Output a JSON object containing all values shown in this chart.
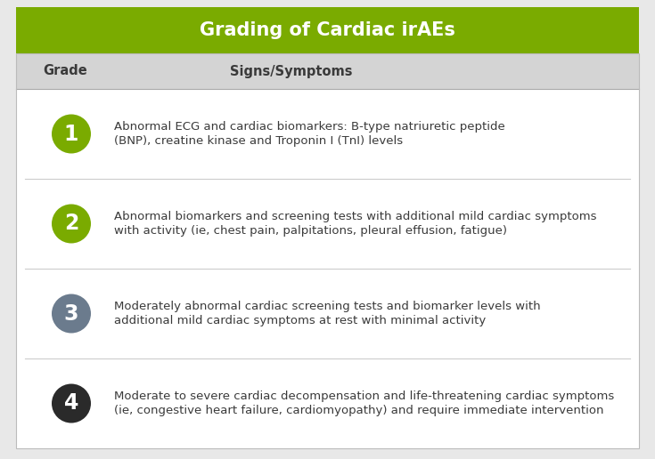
{
  "title": "Grading of Cardiac irAEs",
  "title_bg_color": "#7aab00",
  "title_text_color": "#ffffff",
  "outer_bg_color": "#e8e8e8",
  "inner_bg_color": "#ffffff",
  "header_bg_color": "#d4d4d4",
  "header_grade_text": "Grade",
  "header_symptoms_text": "Signs/Symptoms",
  "grades": [
    {
      "number": "1",
      "circle_color": "#7aab00",
      "text_line1": "Abnormal ECG and cardiac biomarkers: B-type natriuretic peptide",
      "text_line2": "(BNP), creatine kinase and Troponin I (TnI) levels"
    },
    {
      "number": "2",
      "circle_color": "#7aab00",
      "text_line1": "Abnormal biomarkers and screening tests with additional mild cardiac symptoms",
      "text_line2": "with activity (ie, chest pain, palpitations, pleural effusion, fatigue)"
    },
    {
      "number": "3",
      "circle_color": "#6b7b8d",
      "text_line1": "Moderately abnormal cardiac screening tests and biomarker levels with",
      "text_line2": "additional mild cardiac symptoms at rest with minimal activity"
    },
    {
      "number": "4",
      "circle_color": "#2a2a2a",
      "text_line1": "Moderate to severe cardiac decompensation and life-threatening cardiac symptoms",
      "text_line2": "(ie, congestive heart failure, cardiomyopathy) and require immediate intervention"
    }
  ],
  "divider_color": "#cccccc",
  "text_color": "#3a3a3a",
  "font_size_title": 15,
  "font_size_header": 10.5,
  "font_size_body": 9.5,
  "font_size_number": 17
}
